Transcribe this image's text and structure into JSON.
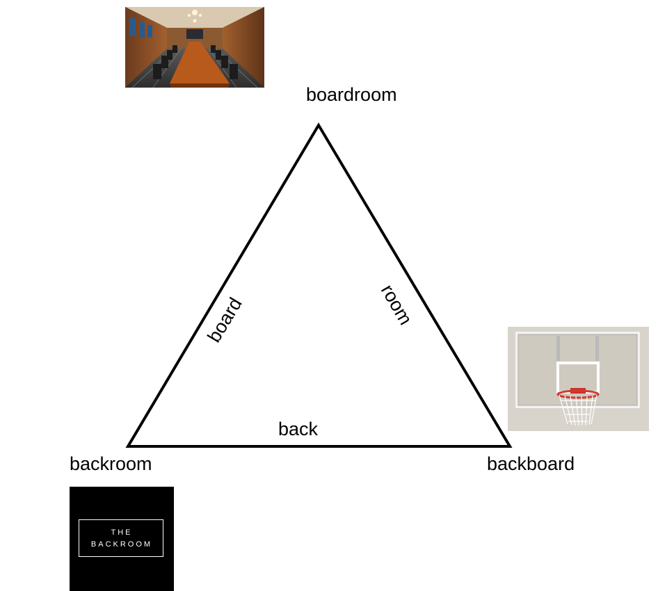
{
  "nodes": {
    "top": {
      "label": "boardroom"
    },
    "left": {
      "label": "backroom"
    },
    "right": {
      "label": "backboard"
    }
  },
  "edges": {
    "left": {
      "label": "board"
    },
    "right": {
      "label": "room"
    },
    "bottom": {
      "label": "back"
    }
  },
  "images": {
    "boardroom": {
      "icon": "conference-room-photo"
    },
    "backroom": {
      "icon": "backroom-logo",
      "logo_line1": "THE",
      "logo_line2": "BACKROOM"
    },
    "backboard": {
      "icon": "basketball-backboard-photo"
    }
  }
}
